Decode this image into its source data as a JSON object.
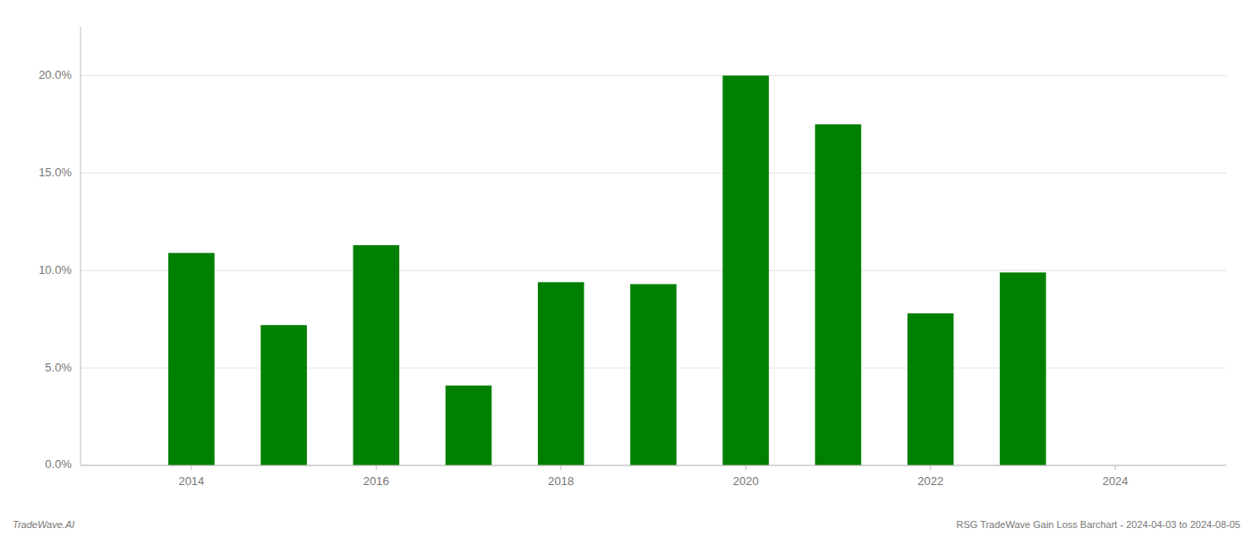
{
  "chart_data": {
    "type": "bar",
    "x": [
      2014,
      2015,
      2016,
      2017,
      2018,
      2019,
      2020,
      2021,
      2022,
      2023
    ],
    "values": [
      0.109,
      0.072,
      0.113,
      0.041,
      0.094,
      0.093,
      0.2,
      0.175,
      0.078,
      0.099
    ],
    "color": "#008000",
    "ylim": [
      0,
      0.225
    ],
    "yticks": [
      {
        "value": 0,
        "label": "0.0%"
      },
      {
        "value": 0.05,
        "label": "5.0%"
      },
      {
        "value": 0.1,
        "label": "10.0%"
      },
      {
        "value": 0.15,
        "label": "15.0%"
      },
      {
        "value": 0.2,
        "label": "20.0%"
      }
    ],
    "xlim": [
      2012.8,
      2025.2
    ],
    "xticks": [
      2014,
      2016,
      2018,
      2020,
      2022,
      2024
    ],
    "grid": true,
    "annotations": [
      "TradeWave.AI",
      "RSG TradeWave Gain Loss Barchart - 2024-04-03 to 2024-08-05"
    ]
  }
}
